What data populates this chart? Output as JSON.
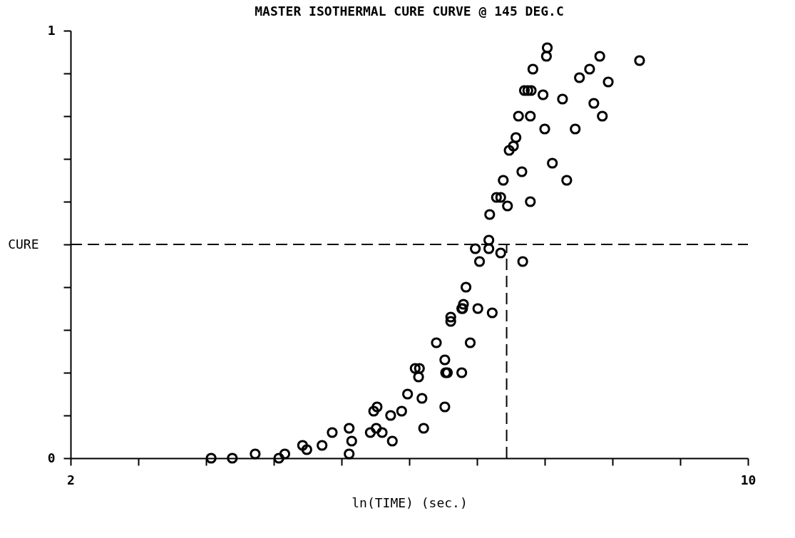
{
  "chart_data": {
    "type": "scatter",
    "title": "MASTER ISOTHERMAL CURE CURVE @ 145 DEG.C",
    "xlabel": "ln(TIME) (sec.)",
    "ylabel": "CURE",
    "xlim": [
      2,
      10
    ],
    "ylim": [
      0,
      1
    ],
    "xticks": [
      2,
      {
        "value": 2.8,
        "label": null
      },
      {
        "value": 3.6,
        "label": null
      },
      {
        "value": 4.4,
        "label": null
      },
      {
        "value": 5.2,
        "label": null
      },
      {
        "value": 6.0,
        "label": null
      },
      {
        "value": 6.8,
        "label": null
      },
      {
        "value": 7.6,
        "label": null
      },
      {
        "value": 8.4,
        "label": null
      },
      {
        "value": 9.2,
        "label": null
      },
      10
    ],
    "yticks": [
      0,
      {
        "value": 0.1,
        "label": null
      },
      {
        "value": 0.2,
        "label": null
      },
      {
        "value": 0.3,
        "label": null
      },
      {
        "value": 0.4,
        "label": null
      },
      {
        "value": 0.5,
        "label": null
      },
      {
        "value": 0.6,
        "label": null
      },
      {
        "value": 0.7,
        "label": null
      },
      {
        "value": 0.8,
        "label": null
      },
      {
        "value": 0.9,
        "label": null
      },
      1
    ],
    "marker": "circle",
    "grid": false,
    "ref_lines": [
      {
        "axis": "y",
        "value": 0.5,
        "line_style": "dashed",
        "color": "#000000"
      },
      {
        "axis": "x",
        "value": 7.15,
        "line_style": "dashed",
        "color": "#000000"
      }
    ],
    "series": [
      {
        "color": "#000000",
        "x": [
          3.66,
          3.91,
          4.18,
          4.46,
          4.53,
          4.74,
          4.79,
          4.97,
          5.09,
          5.29,
          5.29,
          5.32,
          5.54,
          5.58,
          5.62,
          5.61,
          5.68,
          5.8,
          5.78,
          5.91,
          5.98,
          6.07,
          6.11,
          6.12,
          6.15,
          6.17,
          6.32,
          6.42,
          6.43,
          6.42,
          6.45,
          6.49,
          6.49,
          6.62,
          6.62,
          6.63,
          6.64,
          6.67,
          6.72,
          6.78,
          6.81,
          6.83,
          6.94,
          6.94,
          6.98,
          7.08,
          6.95,
          7.03,
          7.08,
          7.11,
          7.16,
          7.18,
          7.23,
          7.26,
          7.29,
          7.33,
          7.34,
          7.36,
          7.4,
          7.44,
          7.43,
          7.43,
          7.46,
          7.58,
          7.6,
          7.62,
          7.63,
          7.69,
          7.81,
          7.86,
          7.96,
          8.01,
          8.13,
          8.18,
          8.25,
          8.28,
          8.35,
          8.72
        ],
        "values": [
          0,
          0,
          0.01,
          0,
          0.01,
          0.03,
          0.02,
          0.03,
          0.06,
          0.07,
          0.01,
          0.04,
          0.06,
          0.11,
          0.12,
          0.07,
          0.06,
          0.04,
          0.1,
          0.11,
          0.15,
          0.21,
          0.19,
          0.21,
          0.14,
          0.07,
          0.27,
          0.23,
          0.2,
          0.12,
          0.2,
          0.32,
          0.33,
          0.35,
          0.2,
          0.35,
          0.36,
          0.4,
          0.27,
          0.49,
          0.35,
          0.46,
          0.51,
          0.49,
          0.34,
          0.48,
          0.57,
          0.61,
          0.61,
          0.65,
          0.59,
          0.72,
          0.73,
          0.75,
          0.8,
          0.67,
          0.46,
          0.86,
          0.86,
          0.86,
          0.8,
          0.6,
          0.91,
          0.85,
          0.77,
          0.94,
          0.96,
          0.69,
          0.84,
          0.65,
          0.77,
          0.89,
          0.91,
          0.83,
          0.94,
          0.8,
          0.88,
          0.93
        ]
      }
    ]
  }
}
